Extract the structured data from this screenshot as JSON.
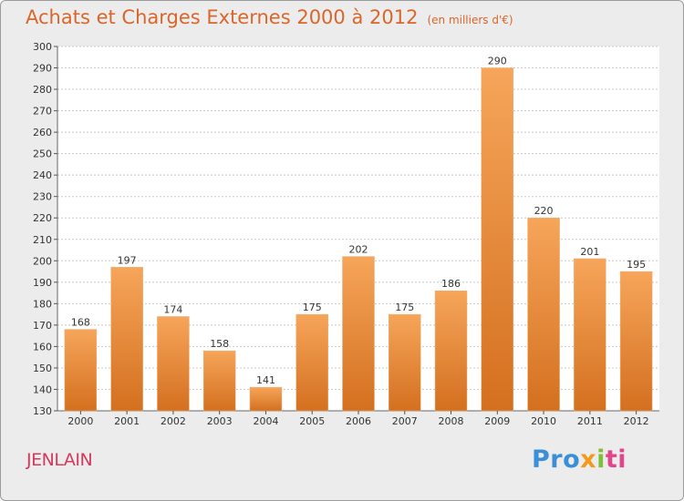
{
  "header": {
    "title": "Achats et Charges Externes 2000 à 2012",
    "unit": "(en milliers d'€)"
  },
  "footer": {
    "town": "JENLAIN",
    "logo": [
      "Pro",
      "x",
      "i",
      "ti"
    ]
  },
  "colors": {
    "bar_top": "#f6a55a",
    "bar_bottom": "#d4701f",
    "title": "#d9662a",
    "town": "#d43a5c"
  },
  "chart_data": {
    "type": "bar",
    "title": "Achats et Charges Externes 2000 à 2012",
    "subtitle": "(en milliers d'€)",
    "categories": [
      "2000",
      "2001",
      "2002",
      "2003",
      "2004",
      "2005",
      "2006",
      "2007",
      "2008",
      "2009",
      "2010",
      "2011",
      "2012"
    ],
    "values": [
      168,
      197,
      174,
      158,
      141,
      175,
      202,
      175,
      186,
      290,
      220,
      201,
      195
    ],
    "ylim": [
      130,
      300
    ],
    "yticks": [
      130,
      140,
      150,
      160,
      170,
      180,
      190,
      200,
      210,
      220,
      230,
      240,
      250,
      260,
      270,
      280,
      290,
      300
    ],
    "grid": true,
    "data_labels": true
  }
}
